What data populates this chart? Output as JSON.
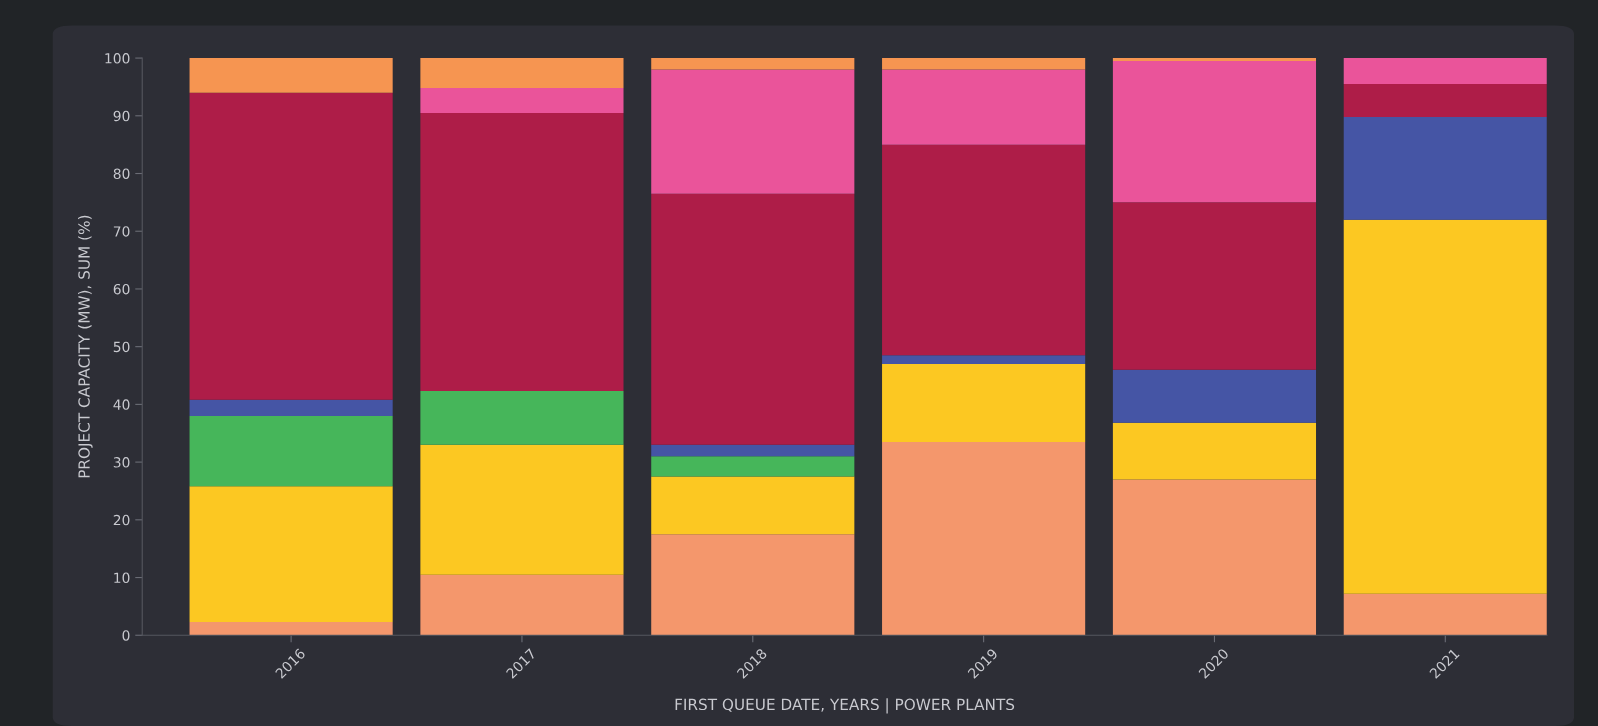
{
  "chart_data": {
    "type": "bar",
    "stacked": true,
    "xlabel": "FIRST QUEUE DATE, YEARS | POWER PLANTS",
    "ylabel": "PROJECT CAPACITY (MW), SUM (%)",
    "categories": [
      "2016",
      "2017",
      "2018",
      "2019",
      "2020",
      "2021"
    ],
    "series": [
      {
        "color": "#f4976c",
        "values": [
          2.3,
          10.5,
          17.5,
          33.5,
          27,
          7.2
        ]
      },
      {
        "color": "#fcc822",
        "values": [
          23.5,
          22.5,
          10,
          13.5,
          9.8,
          64.8
        ]
      },
      {
        "color": "#46b65a",
        "values": [
          12.2,
          9.3,
          3.5,
          0,
          0,
          0
        ]
      },
      {
        "color": "#4555a5",
        "values": [
          2.8,
          0,
          2,
          1.5,
          9.2,
          17.8
        ]
      },
      {
        "color": "#ae1d48",
        "values": [
          53.2,
          48.2,
          43.5,
          36.5,
          29,
          5.7
        ]
      },
      {
        "color": "#ea549a",
        "values": [
          0,
          4.3,
          21.5,
          13,
          24.5,
          4.5
        ]
      },
      {
        "color": "#f69551",
        "values": [
          6,
          5.2,
          2,
          2,
          0.5,
          0
        ]
      }
    ],
    "ylim": [
      0,
      100
    ],
    "yticks": [
      0,
      10,
      20,
      30,
      40,
      50,
      60,
      70,
      80,
      90,
      100
    ],
    "grid": false
  }
}
